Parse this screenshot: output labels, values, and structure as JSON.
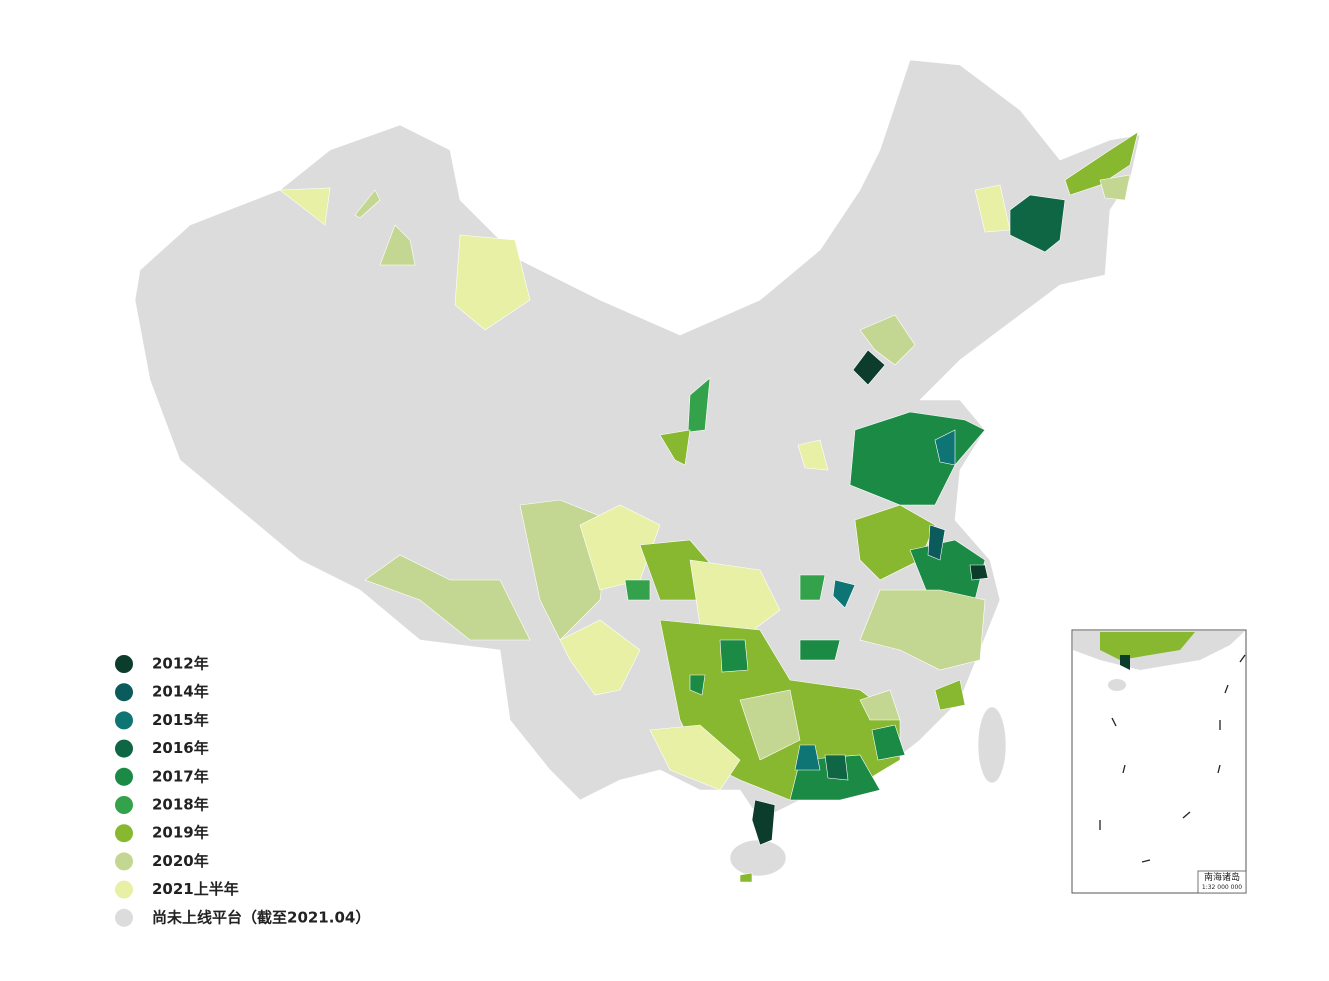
{
  "legend": [
    {
      "label": "2012年",
      "color": "#0c3d2c"
    },
    {
      "label": "2014年",
      "color": "#0b5a5c"
    },
    {
      "label": "2015年",
      "color": "#0e7474"
    },
    {
      "label": "2016年",
      "color": "#0f6644"
    },
    {
      "label": "2017年",
      "color": "#1b8a45"
    },
    {
      "label": "2018年",
      "color": "#33a24a"
    },
    {
      "label": "2019年",
      "color": "#88b730"
    },
    {
      "label": "2020年",
      "color": "#c4d792"
    },
    {
      "label": "2021上半年",
      "color": "#e8f0a6"
    },
    {
      "label": "尚未上线平台（截至2021.04）",
      "color": "#dcdcdc"
    }
  ],
  "inset": {
    "title": "南海诸岛",
    "scale": "1:32 000 000"
  }
}
